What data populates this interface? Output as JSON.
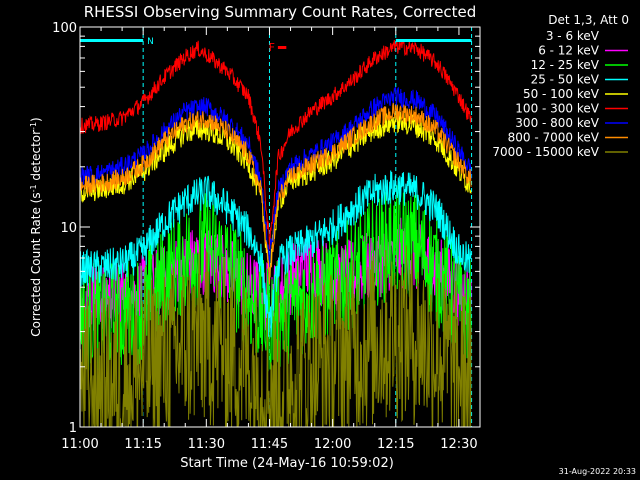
{
  "chart_data": {
    "type": "line",
    "title": "RHESSI Observing Summary Count Rates, Corrected",
    "xlabel": "Start Time (24-May-16 10:59:02)",
    "ylabel_main": "Corrected Count Rate (s",
    "ylabel_sup1": "-1",
    "ylabel_mid": " detector",
    "ylabel_sup2": "-1",
    "ylabel_end": ")",
    "y_scale": "log",
    "ylim": [
      1,
      100
    ],
    "xlim": [
      "11:00",
      "12:35"
    ],
    "x_ticks": [
      "11:00",
      "11:15",
      "11:30",
      "11:45",
      "12:00",
      "12:15",
      "12:30"
    ],
    "x_tick_minutes": [
      0,
      15,
      30,
      45,
      60,
      75,
      90
    ],
    "y_tick_labels": [
      "1",
      "10",
      "100"
    ],
    "y_tick_values": [
      1,
      10,
      100
    ],
    "legend_title": "Det 1,3, Att 0",
    "legend_placement": "right",
    "series": [
      {
        "name": "3 - 6 keV",
        "color": "#000000",
        "x_min": [
          0,
          5,
          10,
          15,
          20,
          25,
          30,
          35,
          40,
          44,
          46,
          50,
          55,
          60,
          65,
          70,
          75,
          80,
          85,
          90,
          93
        ],
        "values": [
          1.5,
          1.5,
          1.5,
          1.5,
          1.7,
          2.3,
          3.0,
          2.4,
          1.8,
          1.4,
          1.4,
          1.6,
          1.7,
          2.0,
          2.4,
          3.0,
          3.3,
          3.0,
          2.3,
          1.6,
          1.5
        ]
      },
      {
        "name": "6 - 12 keV",
        "color": "#ff00ff",
        "x_min": [
          0,
          5,
          10,
          15,
          20,
          25,
          30,
          35,
          40,
          44,
          46,
          50,
          55,
          60,
          65,
          70,
          75,
          80,
          85,
          90,
          93
        ],
        "values": [
          4.5,
          4.5,
          4.6,
          4.8,
          5.5,
          6.5,
          7.0,
          6.0,
          5.0,
          4.5,
          4.5,
          5.5,
          6.5,
          5.5,
          5.8,
          6.5,
          7.5,
          7.0,
          6.0,
          4.8,
          4.6
        ]
      },
      {
        "name": "12 - 25 keV",
        "color": "#00ff00",
        "x_min": [
          0,
          5,
          10,
          15,
          20,
          25,
          30,
          35,
          40,
          44,
          46,
          50,
          55,
          60,
          65,
          70,
          75,
          80,
          85,
          90,
          93
        ],
        "values": [
          3.6,
          3.6,
          3.6,
          4.0,
          5.5,
          7.0,
          8.0,
          6.5,
          4.5,
          3.5,
          3.5,
          4.0,
          4.6,
          5.0,
          6.0,
          7.5,
          8.5,
          8.0,
          6.0,
          4.0,
          3.7
        ]
      },
      {
        "name": "25 - 50 keV",
        "color": "#00ffff",
        "x_min": [
          0,
          5,
          10,
          15,
          20,
          25,
          30,
          35,
          40,
          43,
          45,
          47,
          50,
          55,
          60,
          65,
          70,
          75,
          80,
          85,
          90,
          93
        ],
        "values": [
          6.2,
          6.3,
          6.5,
          7.5,
          10.5,
          13.5,
          15.0,
          12.5,
          9.5,
          7.0,
          3.0,
          6.5,
          7.5,
          8.5,
          10.0,
          12.5,
          15.0,
          16.0,
          15.0,
          12.0,
          7.5,
          6.5
        ]
      },
      {
        "name": "50 - 100 keV",
        "color": "#ffff00",
        "x_min": [
          0,
          5,
          10,
          15,
          20,
          25,
          30,
          35,
          40,
          43,
          45,
          47,
          50,
          55,
          60,
          65,
          70,
          75,
          80,
          85,
          90,
          93
        ],
        "values": [
          15.0,
          15.5,
          16.5,
          19.0,
          24.0,
          30.0,
          31.0,
          27.0,
          21.0,
          14.0,
          6.0,
          13.0,
          17.0,
          19.0,
          21.5,
          26.0,
          31.0,
          34.0,
          32.0,
          27.0,
          19.0,
          16.0
        ]
      },
      {
        "name": "100 - 300 keV",
        "color": "#ff0000",
        "x_min": [
          0,
          5,
          10,
          15,
          20,
          25,
          28,
          30,
          35,
          40,
          43,
          45,
          47,
          50,
          55,
          60,
          65,
          70,
          75,
          80,
          85,
          90,
          93
        ],
        "values": [
          32.0,
          33.0,
          35.0,
          42.0,
          56.0,
          71.0,
          78.0,
          73.0,
          60.0,
          45.0,
          26.0,
          8.0,
          22.0,
          30.0,
          38.0,
          45.0,
          55.0,
          70.0,
          80.0,
          78.0,
          65.0,
          45.0,
          34.0
        ]
      },
      {
        "name": "300 - 800 keV",
        "color": "#0000ff",
        "x_min": [
          0,
          5,
          10,
          15,
          20,
          25,
          30,
          35,
          40,
          43,
          45,
          47,
          50,
          55,
          60,
          65,
          70,
          75,
          80,
          85,
          90,
          93
        ],
        "values": [
          18.0,
          18.5,
          20.0,
          23.0,
          30.0,
          38.0,
          40.0,
          34.0,
          26.0,
          17.0,
          7.0,
          15.0,
          20.0,
          23.0,
          26.5,
          32.0,
          40.0,
          45.0,
          43.0,
          35.0,
          24.0,
          19.0
        ]
      },
      {
        "name": "800 - 7000 keV",
        "color": "#ff8c00",
        "x_min": [
          0,
          5,
          10,
          15,
          20,
          25,
          30,
          35,
          40,
          43,
          45,
          47,
          50,
          55,
          60,
          65,
          70,
          75,
          80,
          85,
          90,
          93
        ],
        "values": [
          16.0,
          16.5,
          17.5,
          20.5,
          27.0,
          33.0,
          35.0,
          30.0,
          23.0,
          15.0,
          5.5,
          13.5,
          18.0,
          20.5,
          23.5,
          28.5,
          34.0,
          38.0,
          36.0,
          30.0,
          21.0,
          17.0
        ]
      },
      {
        "name": "7000 - 15000 keV",
        "color": "#808000",
        "x_min": [
          0,
          5,
          10,
          15,
          20,
          25,
          30,
          35,
          40,
          44,
          46,
          50,
          55,
          60,
          65,
          70,
          75,
          80,
          85,
          90,
          93
        ],
        "values": [
          1.6,
          1.6,
          1.7,
          1.9,
          2.2,
          2.6,
          2.8,
          2.5,
          2.0,
          1.6,
          1.6,
          1.8,
          2.0,
          2.2,
          2.5,
          2.7,
          3.0,
          2.8,
          2.4,
          1.9,
          1.7
        ]
      }
    ],
    "vertical_markers_min": [
      0,
      15,
      45,
      75,
      93
    ],
    "night_bars": [
      {
        "start_min": 0,
        "end_min": 15,
        "label": "N"
      },
      {
        "start_min": 75,
        "end_min": 93,
        "label": ""
      }
    ],
    "flare_marker": {
      "label": "F",
      "start_min": 47,
      "end_min": 49,
      "color": "#ff0000"
    },
    "bar_color": "#00ffff",
    "annotation_date": "31-Aug-2022 20:33"
  }
}
